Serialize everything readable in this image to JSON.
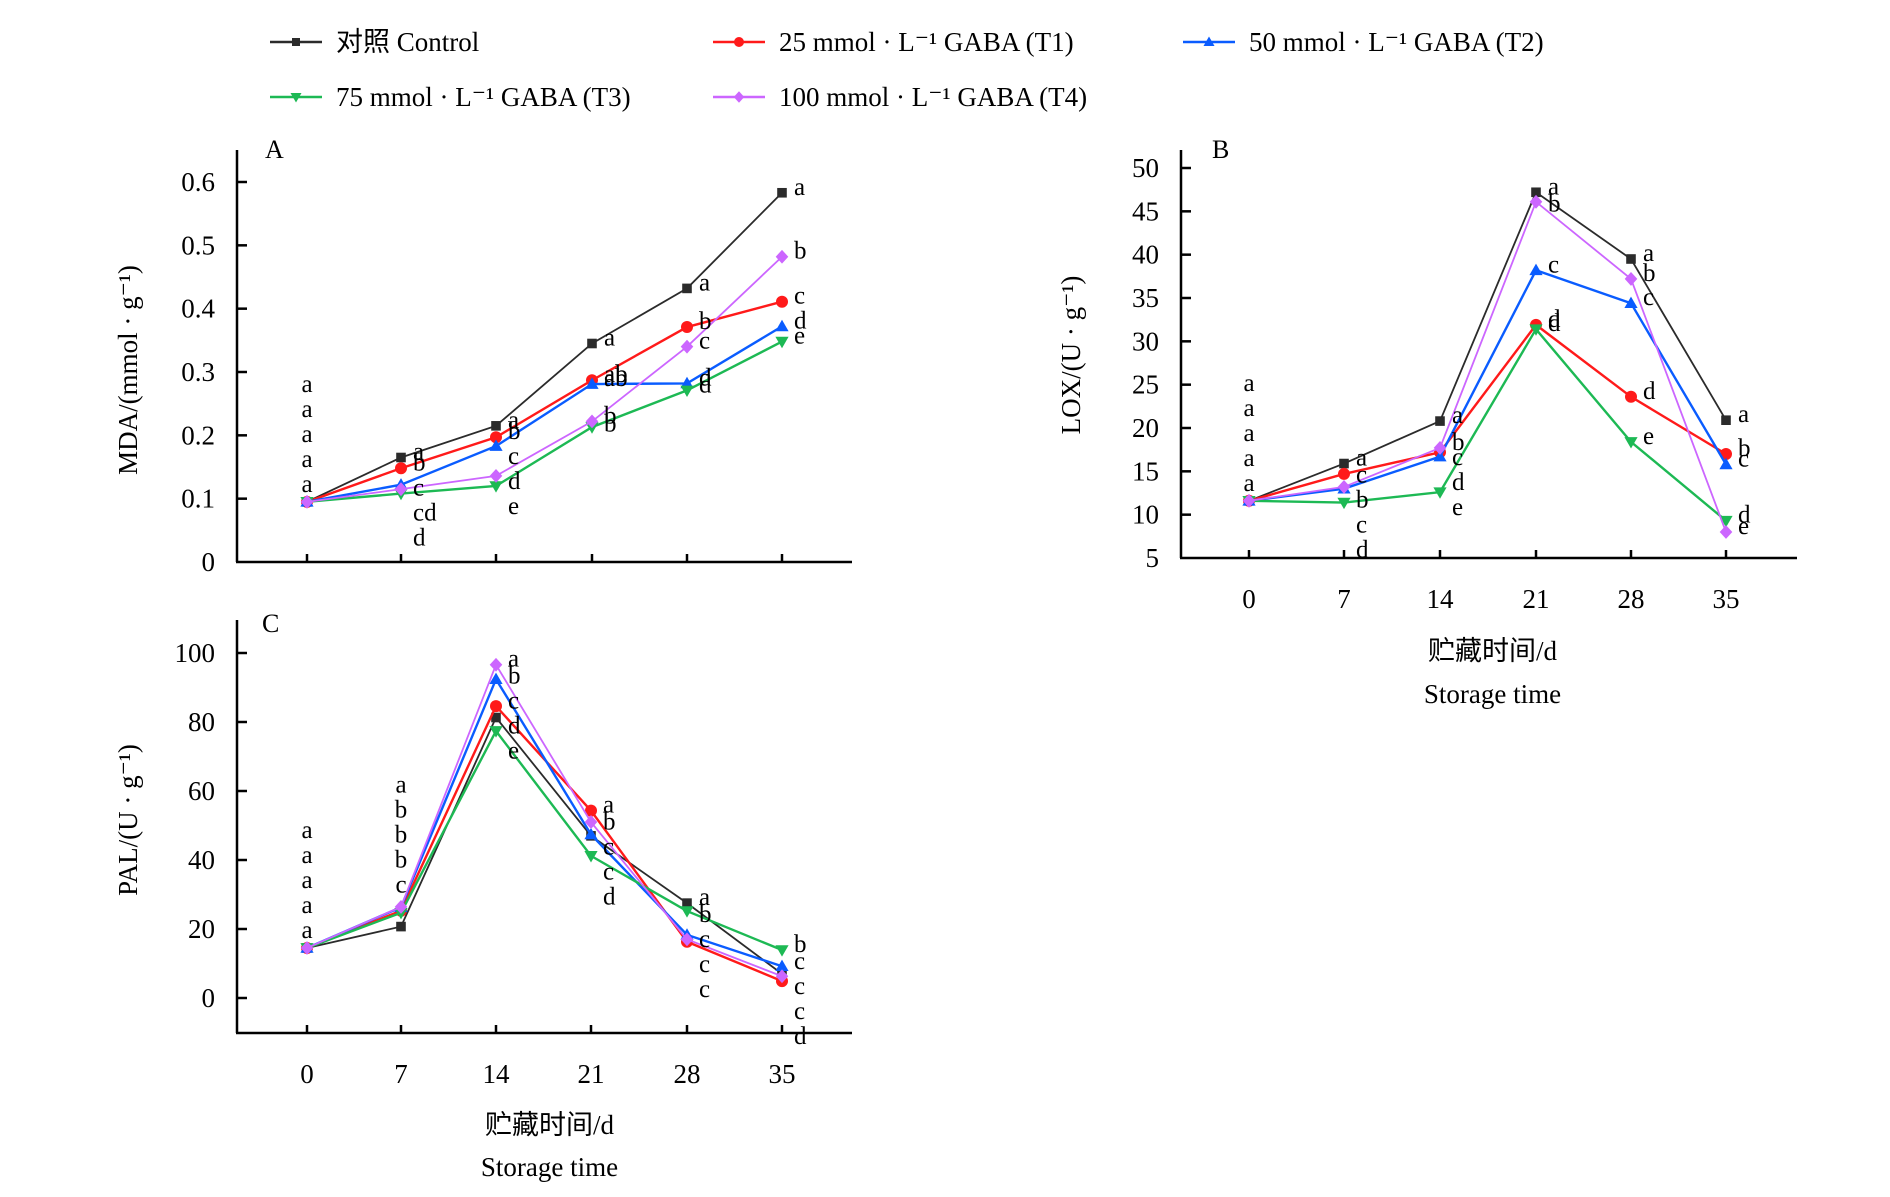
{
  "legend": {
    "items": [
      {
        "key": "control",
        "label": "对照 Control",
        "marker": "square",
        "color": "#2b2b2b"
      },
      {
        "key": "t1",
        "label": "25 mmol · L⁻¹ GABA (T1)",
        "marker": "circle",
        "color": "#ff1a1a"
      },
      {
        "key": "t2",
        "label": "50 mmol · L⁻¹  GABA (T2)",
        "marker": "triangle-up",
        "color": "#0a5cff"
      },
      {
        "key": "t3",
        "label": "75 mmol · L⁻¹  GABA (T3)",
        "marker": "triangle-down",
        "color": "#1db954"
      },
      {
        "key": "t4",
        "label": "100 mmol · L⁻¹  GABA (T4)",
        "marker": "diamond",
        "color": "#cc66ff"
      }
    ]
  },
  "chart_data": [
    {
      "type": "line",
      "panel": "A",
      "title": "",
      "xlabel": [
        "贮藏时间/d",
        "Storage time"
      ],
      "xlabel_shown": false,
      "ylabel": "MDA/(mmol · g⁻¹)",
      "x": [
        0,
        7,
        14,
        21,
        28,
        35
      ],
      "xticks": [
        "0",
        "7",
        "14",
        "21",
        "28",
        "35"
      ],
      "xticks_shown": false,
      "yticks": [
        "0",
        "0.1",
        "0.2",
        "0.3",
        "0.4",
        "0.5",
        "0.6"
      ],
      "ylim": [
        0,
        0.6
      ],
      "grid": false,
      "series": [
        {
          "key": "control",
          "name": "对照 Control",
          "values": [
            0.095,
            0.165,
            0.215,
            0.345,
            0.432,
            0.583
          ],
          "letters": [
            "a",
            "a",
            "a",
            "a",
            "a",
            "a"
          ]
        },
        {
          "key": "t1",
          "name": "25 mmol · L⁻¹ GABA (T1)",
          "values": [
            0.095,
            0.148,
            0.197,
            0.287,
            0.371,
            0.411
          ],
          "letters": [
            "a",
            "b",
            "b",
            "ab",
            "b",
            "c"
          ]
        },
        {
          "key": "t2",
          "name": "50 mmol · L⁻¹ GABA (T2)",
          "values": [
            0.095,
            0.122,
            0.183,
            0.281,
            0.282,
            0.372
          ],
          "letters": [
            "a",
            "c",
            "c",
            "ab",
            "d",
            "d"
          ]
        },
        {
          "key": "t3",
          "name": "75 mmol · L⁻¹ GABA (T3)",
          "values": [
            0.095,
            0.108,
            0.12,
            0.213,
            0.271,
            0.348
          ],
          "letters": [
            "a",
            "d",
            "e",
            "b",
            "d",
            "e"
          ]
        },
        {
          "key": "t4",
          "name": "100 mmol · L⁻¹ GABA (T4)",
          "values": [
            0.095,
            0.115,
            0.136,
            0.222,
            0.34,
            0.482
          ],
          "letters": [
            "a",
            "cd",
            "d",
            "b",
            "c",
            "b"
          ]
        }
      ]
    },
    {
      "type": "line",
      "panel": "B",
      "title": "",
      "xlabel": [
        "贮藏时间/d",
        "Storage time"
      ],
      "xlabel_shown": true,
      "ylabel": "LOX/(U · g⁻¹)",
      "x": [
        0,
        7,
        14,
        21,
        28,
        35
      ],
      "xticks": [
        "0",
        "7",
        "14",
        "21",
        "28",
        "35"
      ],
      "xticks_shown": true,
      "yticks": [
        "5",
        "10",
        "15",
        "20",
        "25",
        "30",
        "35",
        "40",
        "45",
        "50"
      ],
      "ylim": [
        5,
        50
      ],
      "grid": false,
      "series": [
        {
          "key": "control",
          "name": "对照 Control",
          "values": [
            11.6,
            15.9,
            20.8,
            47.2,
            39.5,
            20.9
          ],
          "letters": [
            "a",
            "a",
            "a",
            "a",
            "a",
            "a"
          ]
        },
        {
          "key": "t1",
          "name": "25 mmol · L⁻¹ GABA (T1)",
          "values": [
            11.6,
            14.7,
            17.2,
            31.9,
            23.6,
            17.0
          ],
          "letters": [
            "a",
            "c",
            "c",
            "d",
            "d",
            "b"
          ]
        },
        {
          "key": "t2",
          "name": "50 mmol · L⁻¹ GABA (T2)",
          "values": [
            11.6,
            13.0,
            16.7,
            38.2,
            34.4,
            15.8
          ],
          "letters": [
            "a",
            "c",
            "d",
            "c",
            "c",
            "c"
          ]
        },
        {
          "key": "t3",
          "name": "75 mmol · L⁻¹ GABA (T3)",
          "values": [
            11.6,
            11.4,
            12.6,
            31.4,
            18.4,
            9.3
          ],
          "letters": [
            "a",
            "d",
            "e",
            "d",
            "e",
            "d"
          ]
        },
        {
          "key": "t4",
          "name": "100 mmol · L⁻¹ GABA (T4)",
          "values": [
            11.6,
            13.2,
            17.7,
            46.1,
            37.2,
            8.0
          ],
          "letters": [
            "a",
            "b",
            "b",
            "b",
            "b",
            "e"
          ]
        }
      ]
    },
    {
      "type": "line",
      "panel": "C",
      "title": "",
      "xlabel": [
        "贮藏时间/d",
        "Storage time"
      ],
      "xlabel_shown": true,
      "ylabel": "PAL/(U · g⁻¹)",
      "x": [
        0,
        7,
        14,
        21,
        28,
        35
      ],
      "xticks": [
        "0",
        "7",
        "14",
        "21",
        "28",
        "35"
      ],
      "xticks_shown": true,
      "yticks": [
        "0",
        "20",
        "40",
        "60",
        "80",
        "100"
      ],
      "ylim": [
        -10,
        110
      ],
      "grid": false,
      "series": [
        {
          "key": "control",
          "name": "对照 Control",
          "values": [
            14.5,
            20.7,
            81.3,
            47.0,
            27.5,
            7.0
          ],
          "letters": [
            "a",
            "c",
            "d",
            "c",
            "a",
            "c"
          ]
        },
        {
          "key": "t1",
          "name": "25 mmol · L⁻¹ GABA (T1)",
          "values": [
            14.5,
            25.3,
            84.6,
            54.3,
            16.3,
            4.9
          ],
          "letters": [
            "a",
            "b",
            "c",
            "a",
            "c",
            "d"
          ]
        },
        {
          "key": "t2",
          "name": "50 mmol · L⁻¹ GABA (T2)",
          "values": [
            14.5,
            26.3,
            92.4,
            47.4,
            18.3,
            9.2
          ],
          "letters": [
            "a",
            "b",
            "b",
            "c",
            "c",
            "c"
          ]
        },
        {
          "key": "t3",
          "name": "75 mmol · L⁻¹ GABA (T3)",
          "values": [
            14.5,
            24.7,
            77.4,
            41.2,
            25.2,
            13.9
          ],
          "letters": [
            "a",
            "b",
            "e",
            "d",
            "b",
            "b"
          ]
        },
        {
          "key": "t4",
          "name": "100 mmol · L⁻¹ GABA (T4)",
          "values": [
            14.5,
            26.4,
            96.6,
            51.0,
            17.0,
            6.3
          ],
          "letters": [
            "a",
            "a",
            "a",
            "b",
            "c",
            "c"
          ]
        }
      ]
    }
  ]
}
